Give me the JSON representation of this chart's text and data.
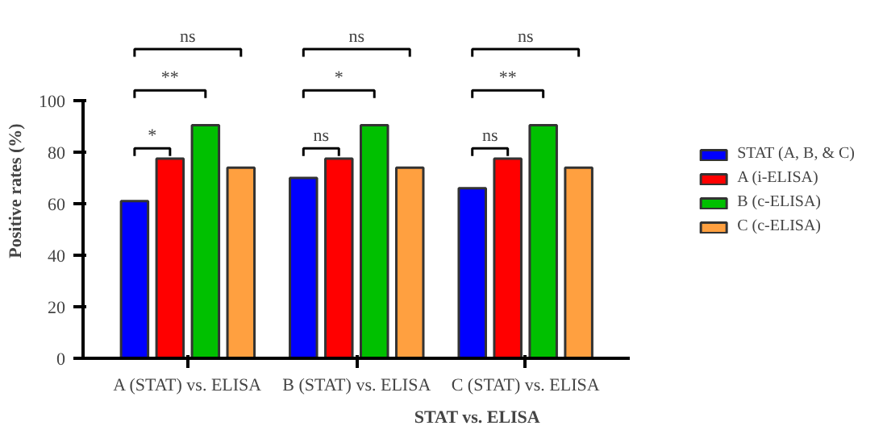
{
  "chart_data": {
    "type": "bar",
    "xlabel": "STAT vs. ELISA",
    "ylabel": "Positive rates (%)",
    "categories": [
      "A (STAT) vs. ELISA",
      "B (STAT) vs. ELISA",
      "C (STAT) vs. ELISA"
    ],
    "series": [
      {
        "name": "STAT (A, B, & C)",
        "color": "#0000ff",
        "values": [
          61,
          70,
          66
        ]
      },
      {
        "name": "A (i-ELISA)",
        "color": "#ff0000",
        "values": [
          77.5,
          77.5,
          77.5
        ]
      },
      {
        "name": "B (c-ELISA)",
        "color": "#00c000",
        "values": [
          90.5,
          90.5,
          90.5
        ]
      },
      {
        "name": "C (c-ELISA)",
        "color": "#ffa040",
        "values": [
          74,
          74,
          74
        ]
      }
    ],
    "ylim": [
      0,
      100
    ],
    "yticks": [
      0,
      20,
      40,
      60,
      80,
      100
    ],
    "legend": "right",
    "annotations": [
      "*",
      "**",
      "ns",
      "ns",
      "*",
      "ns",
      "ns",
      "**",
      "ns"
    ]
  }
}
